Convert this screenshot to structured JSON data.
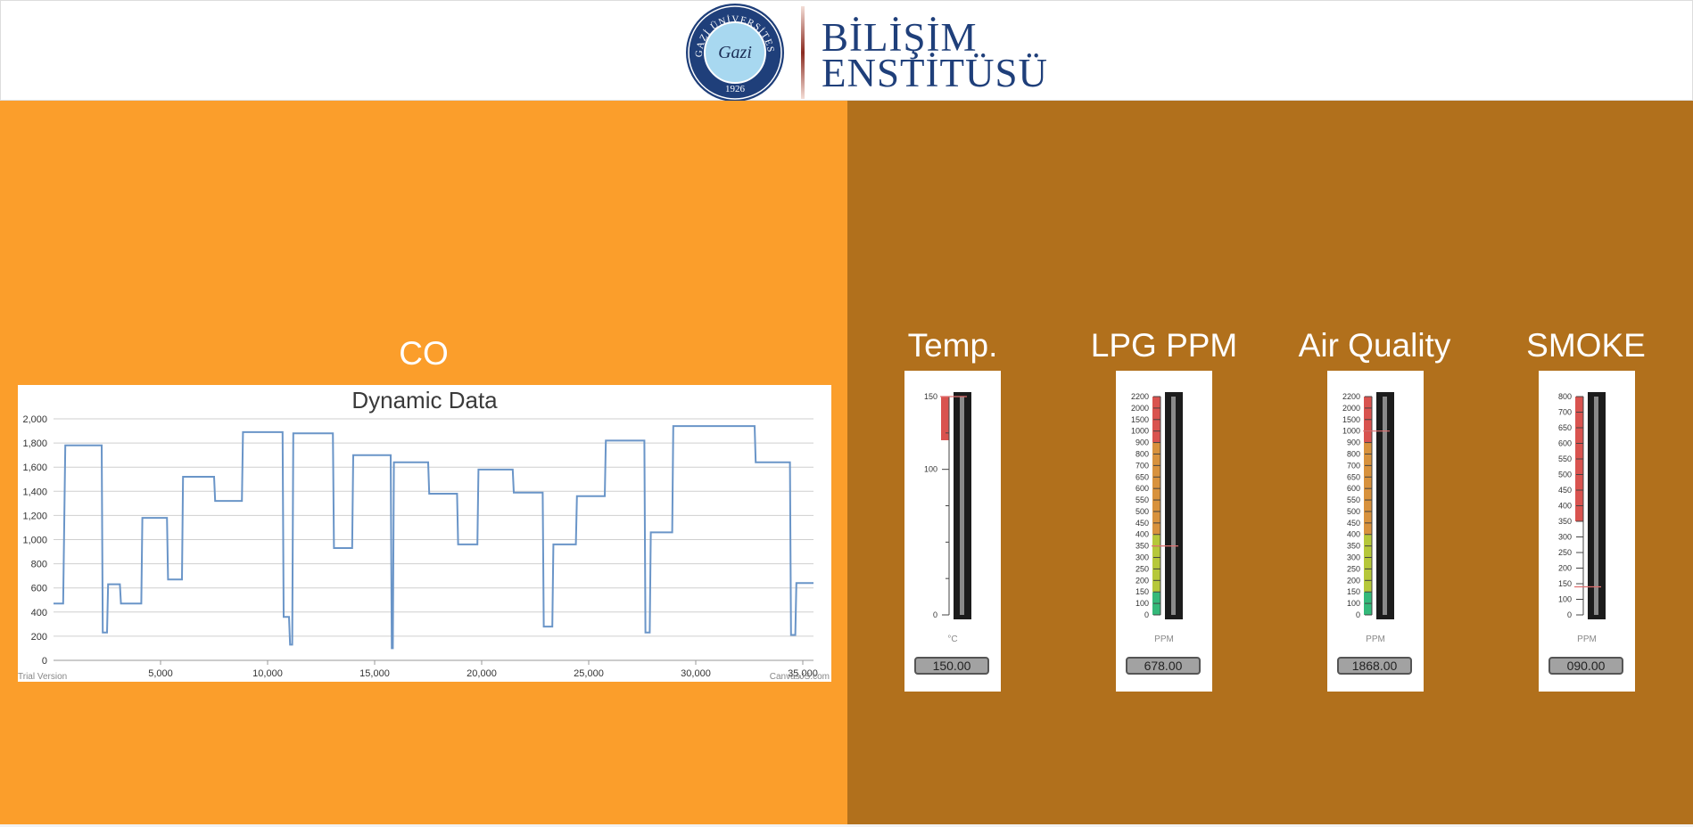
{
  "header": {
    "seal": {
      "ring_text": "GAZİ ÜNİVERSİTESİ",
      "center_text": "Gazi",
      "year": "1926"
    },
    "logo_line1": "BİLİŞİM",
    "logo_line2": "ENSTİTÜSÜ",
    "colors": {
      "navy": "#1f3f7a",
      "seal_inner": "#a8d8f0"
    }
  },
  "left_panel": {
    "title": "CO",
    "background": "#fb9e2b"
  },
  "chart_data": {
    "type": "line",
    "title": "Dynamic Data",
    "xlabel": "",
    "ylabel": "",
    "xlim": [
      0,
      35500
    ],
    "ylim": [
      0,
      2000
    ],
    "x_ticks": [
      "5,000",
      "10,000",
      "15,000",
      "20,000",
      "25,000",
      "30,000",
      "35,000"
    ],
    "x_tick_values": [
      5000,
      10000,
      15000,
      20000,
      25000,
      30000,
      35000
    ],
    "y_ticks": [
      "0",
      "200",
      "400",
      "600",
      "800",
      "1,000",
      "1,200",
      "1,400",
      "1,600",
      "1,800",
      "2,000"
    ],
    "y_tick_values": [
      0,
      200,
      400,
      600,
      800,
      1000,
      1200,
      1400,
      1600,
      1800,
      2000
    ],
    "grid": true,
    "line_color": "#6a95c8",
    "watermark": "Trial Version",
    "credit": "CanvasJS.com",
    "series": [
      {
        "x": [
          0,
          450,
          550,
          2250,
          2300,
          2500,
          2550,
          3100,
          3150,
          4100,
          4150,
          5300,
          5350,
          6000,
          6050,
          7500,
          7550,
          8800,
          8850,
          10700,
          10750,
          11000,
          11050,
          11150,
          11200,
          13050,
          13100,
          13950,
          14000,
          15750,
          15800,
          15850,
          15900,
          17500,
          17550,
          18850,
          18900,
          19800,
          19850,
          21450,
          21500,
          22850,
          22900,
          23300,
          23350,
          24400,
          24450,
          25750,
          25800,
          27600,
          27650,
          27850,
          27900,
          28900,
          28950,
          32750,
          32800,
          34400,
          34450,
          34650,
          34700,
          35500
        ],
        "y": [
          470,
          470,
          1780,
          1780,
          230,
          230,
          630,
          630,
          470,
          470,
          1180,
          1180,
          670,
          670,
          1520,
          1520,
          1320,
          1320,
          1890,
          1890,
          360,
          360,
          130,
          130,
          1880,
          1880,
          930,
          930,
          1700,
          1700,
          100,
          100,
          1640,
          1640,
          1380,
          1380,
          960,
          960,
          1580,
          1580,
          1390,
          1390,
          280,
          280,
          960,
          960,
          1360,
          1360,
          1820,
          1820,
          230,
          230,
          1060,
          1060,
          1940,
          1940,
          1640,
          1640,
          210,
          210,
          640,
          640
        ]
      }
    ]
  },
  "gauges": [
    {
      "title": "Temp.",
      "unit": "°C",
      "value_text": "150.00",
      "value": 150,
      "min": 0,
      "max": 150,
      "tick_labels": [
        "150",
        "100",
        "0"
      ],
      "tick_values": [
        150,
        100,
        0
      ],
      "ranges": [
        {
          "from": 120,
          "to": 150,
          "color": "#d9534f"
        }
      ],
      "needle": 150
    },
    {
      "title": "LPG PPM",
      "unit": "PPM",
      "value_text": "678.00",
      "value": 678,
      "min": 0,
      "max": 2200,
      "tick_labels": [
        "2200",
        "2000",
        "1500",
        "1000",
        "900",
        "800",
        "700",
        "650",
        "600",
        "550",
        "500",
        "450",
        "400",
        "350",
        "300",
        "250",
        "200",
        "150",
        "100",
        "0"
      ],
      "tick_values": [
        2200,
        2000,
        1500,
        1000,
        900,
        800,
        700,
        650,
        600,
        550,
        500,
        450,
        400,
        350,
        300,
        250,
        200,
        150,
        100,
        0
      ],
      "ranges": [
        {
          "from": 0,
          "to": 150,
          "color": "#34b97a"
        },
        {
          "from": 150,
          "to": 400,
          "color": "#b6c83a"
        },
        {
          "from": 400,
          "to": 900,
          "color": "#d8923d"
        },
        {
          "from": 900,
          "to": 2200,
          "color": "#d9534f"
        }
      ],
      "needle_index": 13
    },
    {
      "title": "Air Quality",
      "unit": "PPM",
      "value_text": "1868.00",
      "value": 1868,
      "min": 0,
      "max": 2200,
      "tick_labels": [
        "2200",
        "2000",
        "1500",
        "1000",
        "900",
        "800",
        "700",
        "650",
        "600",
        "550",
        "500",
        "450",
        "400",
        "350",
        "300",
        "250",
        "200",
        "150",
        "100",
        "0"
      ],
      "tick_values": [
        2200,
        2000,
        1500,
        1000,
        900,
        800,
        700,
        650,
        600,
        550,
        500,
        450,
        400,
        350,
        300,
        250,
        200,
        150,
        100,
        0
      ],
      "ranges": [
        {
          "from": 0,
          "to": 150,
          "color": "#34b97a"
        },
        {
          "from": 150,
          "to": 400,
          "color": "#b6c83a"
        },
        {
          "from": 400,
          "to": 900,
          "color": "#d8923d"
        },
        {
          "from": 900,
          "to": 2200,
          "color": "#d9534f"
        }
      ],
      "needle_index": 3
    },
    {
      "title": "SMOKE",
      "unit": "PPM",
      "value_text": "090.00",
      "value": 90,
      "min": 0,
      "max": 800,
      "tick_labels": [
        "800",
        "700",
        "650",
        "600",
        "550",
        "500",
        "450",
        "400",
        "350",
        "300",
        "250",
        "200",
        "150",
        "100",
        "0"
      ],
      "tick_values": [
        800,
        700,
        650,
        600,
        550,
        500,
        450,
        400,
        350,
        300,
        250,
        200,
        150,
        100,
        0
      ],
      "ranges": [
        {
          "from": 350,
          "to": 800,
          "color": "#d9534f"
        }
      ],
      "needle_index": 12.2
    }
  ],
  "right_panel": {
    "background": "#b1701c"
  }
}
